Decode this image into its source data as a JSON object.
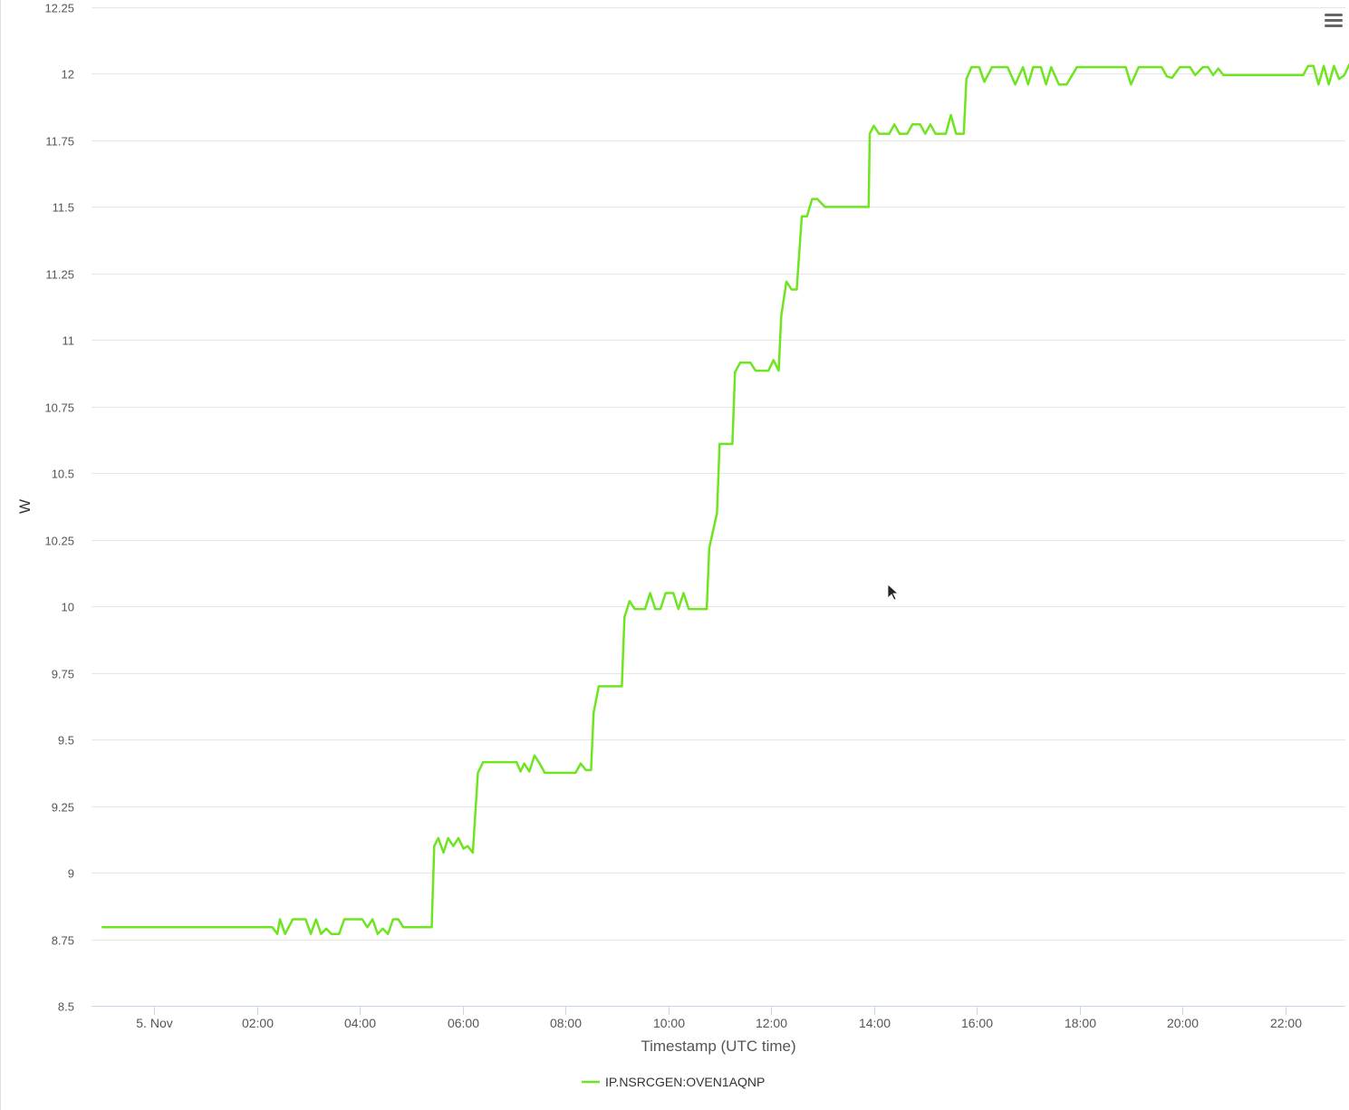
{
  "chart_data": {
    "type": "line",
    "title": "",
    "xlabel": "Timestamp (UTC time)",
    "ylabel": "W",
    "xlim": [
      -1.0,
      23.3
    ],
    "ylim": [
      8.5,
      12.25
    ],
    "grid": true,
    "legend": "bottom-center",
    "x_ticks": [
      {
        "label": "5. Nov",
        "x": 0
      },
      {
        "label": "02:00",
        "x": 2
      },
      {
        "label": "04:00",
        "x": 4
      },
      {
        "label": "06:00",
        "x": 6
      },
      {
        "label": "08:00",
        "x": 8
      },
      {
        "label": "10:00",
        "x": 10
      },
      {
        "label": "12:00",
        "x": 12
      },
      {
        "label": "14:00",
        "x": 14
      },
      {
        "label": "16:00",
        "x": 16
      },
      {
        "label": "18:00",
        "x": 18
      },
      {
        "label": "20:00",
        "x": 20
      },
      {
        "label": "22:00",
        "x": 22
      }
    ],
    "y_ticks": [
      {
        "label": "8.5",
        "y": 8.5
      },
      {
        "label": "8.75",
        "y": 8.75
      },
      {
        "label": "9",
        "y": 9.0
      },
      {
        "label": "9.25",
        "y": 9.25
      },
      {
        "label": "9.5",
        "y": 9.5
      },
      {
        "label": "9.75",
        "y": 9.75
      },
      {
        "label": "10",
        "y": 10.0
      },
      {
        "label": "10.25",
        "y": 10.25
      },
      {
        "label": "10.5",
        "y": 10.5
      },
      {
        "label": "10.75",
        "y": 10.75
      },
      {
        "label": "11",
        "y": 11.0
      },
      {
        "label": "11.25",
        "y": 11.25
      },
      {
        "label": "11.5",
        "y": 11.5
      },
      {
        "label": "11.75",
        "y": 11.75
      },
      {
        "label": "12",
        "y": 12.0
      },
      {
        "label": "12.25",
        "y": 12.25
      }
    ],
    "series": [
      {
        "name": "IP.NSRCGEN:OVEN1AQNP",
        "color": "#6ee51f",
        "points": [
          [
            -1.0,
            8.795
          ],
          [
            2.3,
            8.795
          ],
          [
            2.4,
            8.77
          ],
          [
            2.45,
            8.825
          ],
          [
            2.55,
            8.77
          ],
          [
            2.7,
            8.825
          ],
          [
            2.95,
            8.825
          ],
          [
            3.05,
            8.77
          ],
          [
            3.15,
            8.825
          ],
          [
            3.25,
            8.77
          ],
          [
            3.35,
            8.79
          ],
          [
            3.45,
            8.77
          ],
          [
            3.6,
            8.77
          ],
          [
            3.7,
            8.825
          ],
          [
            4.05,
            8.825
          ],
          [
            4.15,
            8.795
          ],
          [
            4.25,
            8.825
          ],
          [
            4.35,
            8.77
          ],
          [
            4.45,
            8.79
          ],
          [
            4.55,
            8.77
          ],
          [
            4.65,
            8.825
          ],
          [
            4.75,
            8.825
          ],
          [
            4.85,
            8.795
          ],
          [
            5.4,
            8.795
          ],
          [
            5.45,
            9.1
          ],
          [
            5.53,
            9.13
          ],
          [
            5.63,
            9.075
          ],
          [
            5.72,
            9.13
          ],
          [
            5.82,
            9.1
          ],
          [
            5.92,
            9.13
          ],
          [
            6.02,
            9.09
          ],
          [
            6.1,
            9.1
          ],
          [
            6.2,
            9.075
          ],
          [
            6.3,
            9.375
          ],
          [
            6.4,
            9.415
          ],
          [
            7.05,
            9.415
          ],
          [
            7.13,
            9.38
          ],
          [
            7.2,
            9.41
          ],
          [
            7.3,
            9.38
          ],
          [
            7.4,
            9.44
          ],
          [
            7.5,
            9.41
          ],
          [
            7.6,
            9.375
          ],
          [
            8.2,
            9.375
          ],
          [
            8.3,
            9.41
          ],
          [
            8.4,
            9.385
          ],
          [
            8.5,
            9.385
          ],
          [
            8.55,
            9.6
          ],
          [
            8.65,
            9.7
          ],
          [
            9.1,
            9.7
          ],
          [
            9.15,
            9.96
          ],
          [
            9.25,
            10.02
          ],
          [
            9.35,
            9.99
          ],
          [
            9.55,
            9.99
          ],
          [
            9.65,
            10.05
          ],
          [
            9.75,
            9.99
          ],
          [
            9.85,
            9.99
          ],
          [
            9.95,
            10.05
          ],
          [
            10.1,
            10.05
          ],
          [
            10.2,
            9.99
          ],
          [
            10.3,
            10.05
          ],
          [
            10.4,
            9.99
          ],
          [
            10.75,
            9.99
          ],
          [
            10.8,
            10.22
          ],
          [
            10.95,
            10.35
          ],
          [
            11.0,
            10.61
          ],
          [
            11.25,
            10.61
          ],
          [
            11.3,
            10.88
          ],
          [
            11.4,
            10.915
          ],
          [
            11.6,
            10.915
          ],
          [
            11.7,
            10.885
          ],
          [
            11.95,
            10.885
          ],
          [
            12.05,
            10.925
          ],
          [
            12.15,
            10.885
          ],
          [
            12.2,
            11.09
          ],
          [
            12.3,
            11.22
          ],
          [
            12.4,
            11.19
          ],
          [
            12.5,
            11.19
          ],
          [
            12.6,
            11.465
          ],
          [
            12.7,
            11.465
          ],
          [
            12.8,
            11.53
          ],
          [
            12.9,
            11.53
          ],
          [
            13.05,
            11.5
          ],
          [
            13.9,
            11.5
          ],
          [
            13.92,
            11.775
          ],
          [
            14.0,
            11.805
          ],
          [
            14.1,
            11.775
          ],
          [
            14.3,
            11.775
          ],
          [
            14.4,
            11.81
          ],
          [
            14.5,
            11.775
          ],
          [
            14.65,
            11.775
          ],
          [
            14.75,
            11.81
          ],
          [
            14.9,
            11.81
          ],
          [
            15.0,
            11.775
          ],
          [
            15.1,
            11.81
          ],
          [
            15.2,
            11.775
          ],
          [
            15.4,
            11.775
          ],
          [
            15.5,
            11.845
          ],
          [
            15.6,
            11.775
          ],
          [
            15.75,
            11.775
          ],
          [
            15.8,
            11.98
          ],
          [
            15.9,
            12.025
          ],
          [
            16.05,
            12.025
          ],
          [
            16.15,
            11.97
          ],
          [
            16.3,
            12.025
          ],
          [
            16.6,
            12.025
          ],
          [
            16.75,
            11.96
          ],
          [
            16.9,
            12.025
          ],
          [
            17.0,
            11.96
          ],
          [
            17.1,
            12.025
          ],
          [
            17.25,
            12.025
          ],
          [
            17.35,
            11.96
          ],
          [
            17.45,
            12.025
          ],
          [
            17.6,
            11.96
          ],
          [
            17.75,
            11.96
          ],
          [
            17.95,
            12.025
          ],
          [
            18.9,
            12.025
          ],
          [
            19.0,
            11.96
          ],
          [
            19.15,
            12.025
          ],
          [
            19.6,
            12.025
          ],
          [
            19.7,
            11.99
          ],
          [
            19.8,
            11.985
          ],
          [
            19.95,
            12.025
          ],
          [
            20.15,
            12.025
          ],
          [
            20.25,
            11.995
          ],
          [
            20.4,
            12.025
          ],
          [
            20.5,
            12.025
          ],
          [
            20.6,
            11.995
          ],
          [
            20.7,
            12.02
          ],
          [
            20.8,
            11.995
          ],
          [
            22.35,
            11.995
          ],
          [
            22.45,
            12.03
          ],
          [
            22.55,
            12.03
          ],
          [
            22.65,
            11.96
          ],
          [
            22.75,
            12.03
          ],
          [
            22.85,
            11.96
          ],
          [
            22.95,
            12.03
          ],
          [
            23.05,
            11.98
          ],
          [
            23.15,
            11.995
          ],
          [
            23.25,
            12.035
          ],
          [
            23.4,
            12.035
          ]
        ]
      }
    ]
  },
  "ui": {
    "menu_icon": "hamburger-menu-icon",
    "cursor_icon": "mouse-pointer-icon",
    "gridline_color": "#e6e6e6",
    "axis_color": "#ccd6eb"
  }
}
